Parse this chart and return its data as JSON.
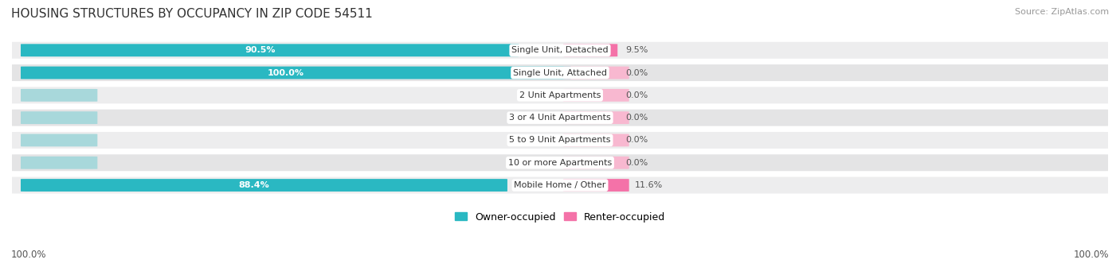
{
  "title": "HOUSING STRUCTURES BY OCCUPANCY IN ZIP CODE 54511",
  "source": "Source: ZipAtlas.com",
  "categories": [
    "Single Unit, Detached",
    "Single Unit, Attached",
    "2 Unit Apartments",
    "3 or 4 Unit Apartments",
    "5 to 9 Unit Apartments",
    "10 or more Apartments",
    "Mobile Home / Other"
  ],
  "owner_pct": [
    90.5,
    100.0,
    0.0,
    0.0,
    0.0,
    0.0,
    88.4
  ],
  "renter_pct": [
    9.5,
    0.0,
    0.0,
    0.0,
    0.0,
    0.0,
    11.6
  ],
  "owner_color": "#2AB8C2",
  "renter_color": "#F472A8",
  "renter_color_light": "#F8B8D0",
  "row_bg_odd": "#F2F2F2",
  "row_bg_even": "#E8E8E8",
  "title_fontsize": 11,
  "source_fontsize": 8,
  "label_fontsize": 8,
  "cat_fontsize": 8,
  "figsize": [
    14.06,
    3.41
  ],
  "dpi": 100,
  "legend_owner": "Owner-occupied",
  "legend_renter": "Renter-occupied",
  "bottom_left": "100.0%",
  "bottom_right": "100.0%"
}
